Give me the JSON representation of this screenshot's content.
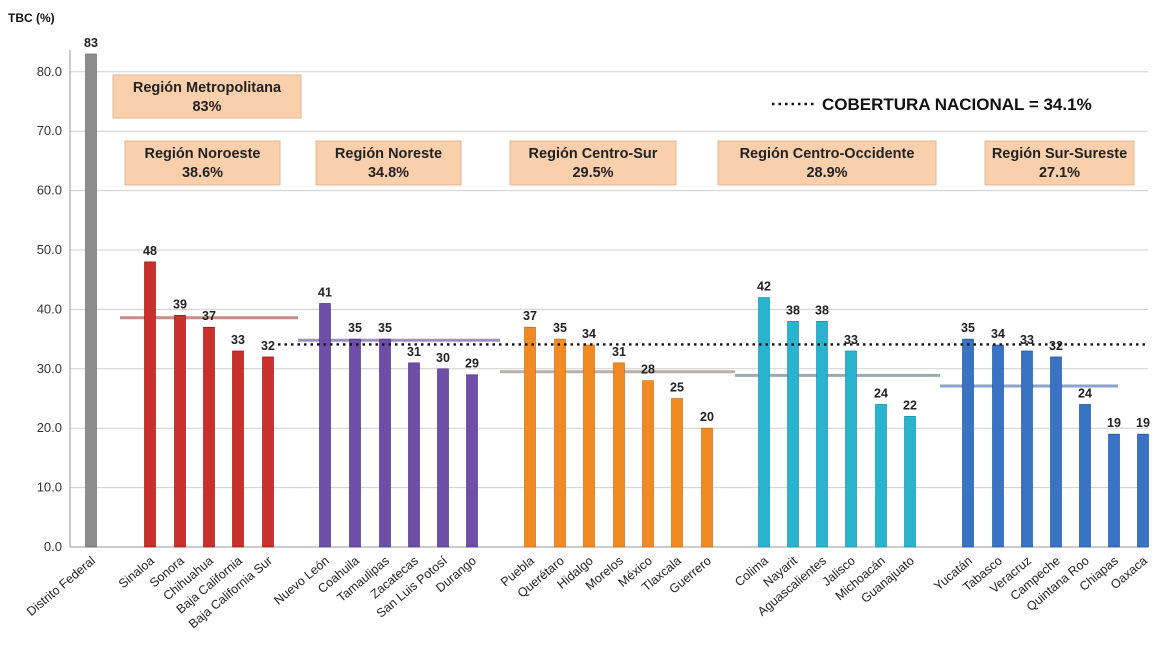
{
  "chart_data": {
    "type": "bar",
    "ylabel": "TBC (%)",
    "ylim": [
      0,
      85
    ],
    "yticks": [
      "0.0",
      "10.0",
      "20.0",
      "30.0",
      "40.0",
      "50.0",
      "60.0",
      "70.0",
      "80.0"
    ],
    "grid": true,
    "national": {
      "label": "COBERTURA NACIONAL = 34.1%",
      "value": 34.1,
      "style": "dotted"
    },
    "groups": [
      {
        "region": "Región Metropolitana",
        "region_value_label": "83%",
        "average": 83,
        "color": "#8c8c8c",
        "categories": [
          "Distrito Federal"
        ],
        "values": [
          83
        ]
      },
      {
        "region": "Región Noroeste",
        "region_value_label": "38.6%",
        "average": 38.6,
        "color": "#c9302c",
        "avg_color": "#c98a8a",
        "categories": [
          "Sinaloa",
          "Sonora",
          "Chihuahua",
          "Baja California",
          "Baja California Sur"
        ],
        "values": [
          48,
          39,
          37,
          33,
          32
        ]
      },
      {
        "region": "Región Noreste",
        "region_value_label": "34.8%",
        "average": 34.8,
        "color": "#6e4fa8",
        "avg_color": "#9a8fc0",
        "categories": [
          "Nuevo León",
          "Coahuila",
          "Tamaulipas",
          "Zacatecas",
          "San Luis Potosí",
          "Durango"
        ],
        "values": [
          41,
          35,
          35,
          31,
          30,
          29
        ]
      },
      {
        "region": "Región Centro-Sur",
        "region_value_label": "29.5%",
        "average": 29.5,
        "color": "#f28a24",
        "avg_color": "#b9b0a6",
        "categories": [
          "Puebla",
          "Querétaro",
          "Hidalgo",
          "Morelos",
          "México",
          "Tlaxcala",
          "Guerrero"
        ],
        "values": [
          37,
          35,
          34,
          31,
          28,
          25,
          20
        ]
      },
      {
        "region": "Región Centro-Occidente",
        "region_value_label": "28.9%",
        "average": 28.9,
        "color": "#2ab3cf",
        "avg_color": "#9aaab0",
        "categories": [
          "Colima",
          "Nayarit",
          "Aguascalientes",
          "Jalisco",
          "Michoacán",
          "Guanajuato"
        ],
        "values": [
          42,
          38,
          38,
          33,
          24,
          22
        ]
      },
      {
        "region": "Región Sur-Sureste",
        "region_value_label": "27.1%",
        "average": 27.1,
        "color": "#3a72c4",
        "avg_color": "#8aa3c8",
        "categories": [
          "Yucatán",
          "Tabasco",
          "Veracruz",
          "Campeche",
          "Quintana Roo",
          "Chiapas",
          "Oaxaca"
        ],
        "values": [
          35,
          34,
          33,
          32,
          24,
          19,
          19
        ]
      }
    ]
  }
}
